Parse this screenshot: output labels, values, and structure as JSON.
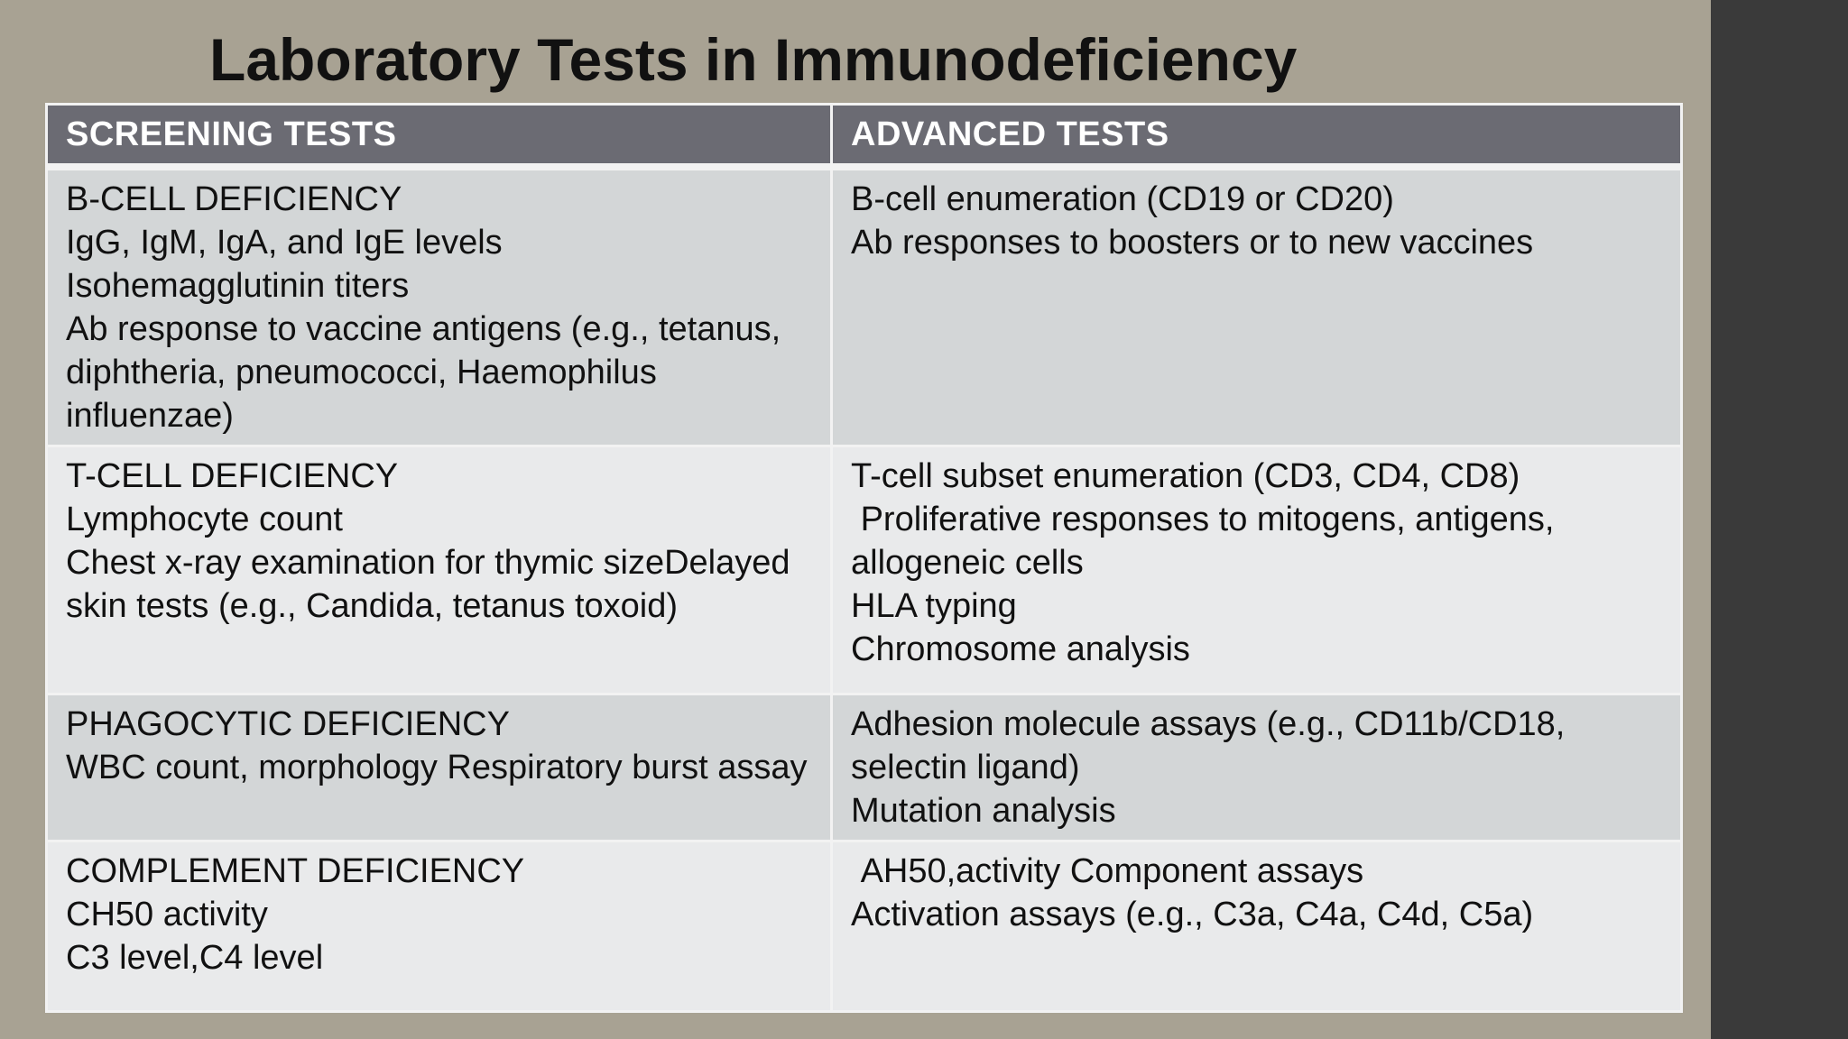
{
  "slide": {
    "title": "Laboratory Tests in Immunodeficiency"
  },
  "table": {
    "headers": [
      "SCREENING TESTS",
      "ADVANCED TESTS"
    ],
    "rows": [
      {
        "screening": [
          "B-CELL DEFICIENCY",
          "IgG, IgM, IgA, and IgE levels",
          "Isohemagglutinin titers",
          "Ab response to vaccine antigens (e.g., tetanus, diphtheria, pneumococci, Haemophilus influenzae)"
        ],
        "advanced": [
          "B-cell enumeration (CD19 or CD20)",
          "Ab responses to boosters or to new vaccines"
        ]
      },
      {
        "screening": [
          "T-CELL DEFICIENCY",
          "Lymphocyte count",
          "Chest x-ray examination for thymic sizeDelayed skin tests (e.g., Candida, tetanus toxoid)"
        ],
        "advanced": [
          "T-cell subset enumeration (CD3, CD4, CD8)",
          " Proliferative responses to mitogens, antigens, allogeneic cells",
          "HLA typing",
          "Chromosome analysis"
        ]
      },
      {
        "screening": [
          "PHAGOCYTIC DEFICIENCY",
          "WBC count, morphology Respiratory burst assay"
        ],
        "advanced": [
          "Adhesion molecule assays (e.g., CD11b/CD18, selectin ligand)",
          "Mutation analysis"
        ]
      },
      {
        "screening": [
          "COMPLEMENT DEFICIENCY",
          "CH50 activity",
          "C3 level,C4 level"
        ],
        "advanced": [
          " AH50,activity Component assays",
          "Activation assays (e.g., C3a, C4a, C4d, C5a)"
        ]
      }
    ]
  },
  "colors": {
    "background": "#a8a293",
    "header_fill": "#6b6b73",
    "row_dark": "#d3d6d7",
    "row_light": "#e9eaeb",
    "side_panel": "#3a3a3a"
  }
}
